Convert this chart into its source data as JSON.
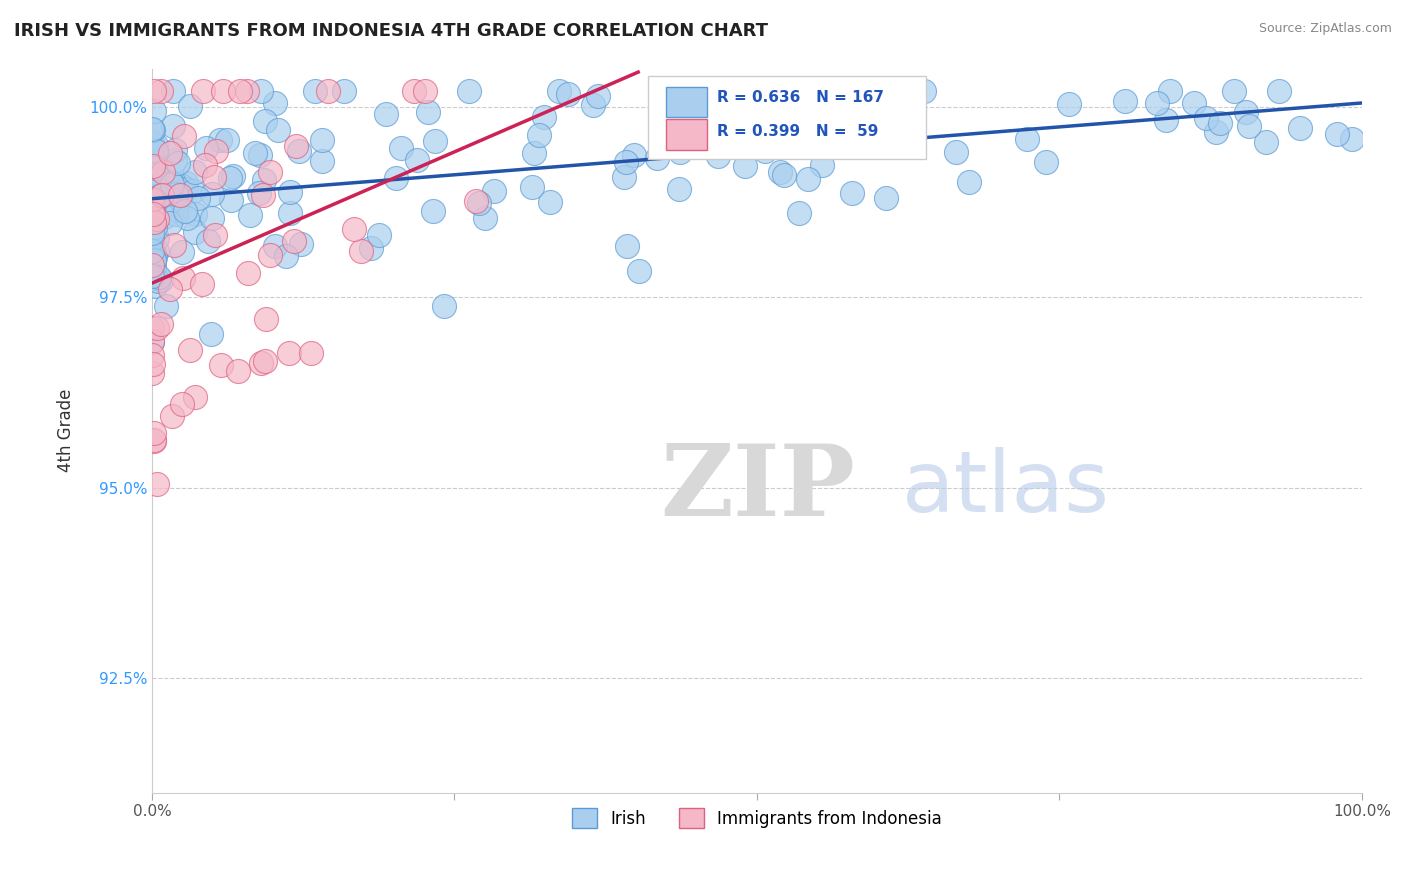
{
  "title": "IRISH VS IMMIGRANTS FROM INDONESIA 4TH GRADE CORRELATION CHART",
  "source_text": "Source: ZipAtlas.com",
  "ylabel": "4th Grade",
  "xlim": [
    0.0,
    1.0
  ],
  "ylim": [
    0.91,
    1.005
  ],
  "yticks": [
    0.925,
    0.95,
    0.975,
    1.0
  ],
  "ytick_labels": [
    "92.5%",
    "95.0%",
    "97.5%",
    "100.0%"
  ],
  "xtick_labels": [
    "0.0%",
    "100.0%"
  ],
  "xticks": [
    0.0,
    1.0
  ],
  "irish_color": "#aacfee",
  "irish_edge_color": "#5b9bd5",
  "indonesia_color": "#f4b8c8",
  "indonesia_edge_color": "#e06080",
  "trend_blue": "#2255aa",
  "trend_pink": "#cc2255",
  "legend_R_irish": "R = 0.636",
  "legend_N_irish": "N = 167",
  "legend_R_indonesia": "R = 0.399",
  "legend_N_indonesia": "N =  59",
  "watermark_ZIP": "ZIP",
  "watermark_atlas": "atlas",
  "background_color": "#ffffff"
}
